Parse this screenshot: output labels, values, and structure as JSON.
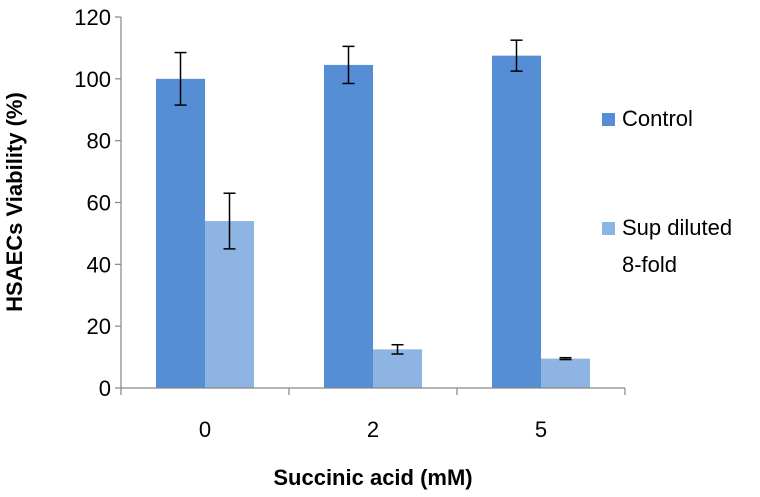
{
  "chart_data": {
    "type": "bar",
    "categories": [
      "0",
      "2",
      "5"
    ],
    "series": [
      {
        "name": "Control",
        "values": [
          100,
          104.5,
          107.5
        ],
        "errors": [
          8.5,
          6,
          5
        ],
        "color": "#558ed5"
      },
      {
        "name": "Sup diluted 8-fold",
        "values": [
          54,
          12.5,
          9.5
        ],
        "errors": [
          9,
          1.5,
          0.3
        ],
        "color": "#8eb4e3"
      }
    ],
    "xlabel": "Succinic acid (mM)",
    "ylabel": "HSAECs Viability (%)",
    "ylim": [
      0,
      120
    ],
    "yticks": [
      0,
      20,
      40,
      60,
      80,
      100,
      120
    ],
    "ytick_labels": [
      "0",
      "20",
      "40",
      "60",
      "80",
      "100",
      "120"
    ],
    "grid": false,
    "legend_position": "right",
    "legend_labels": [
      [
        "Control"
      ],
      [
        "Sup diluted",
        "8-fold"
      ]
    ]
  }
}
